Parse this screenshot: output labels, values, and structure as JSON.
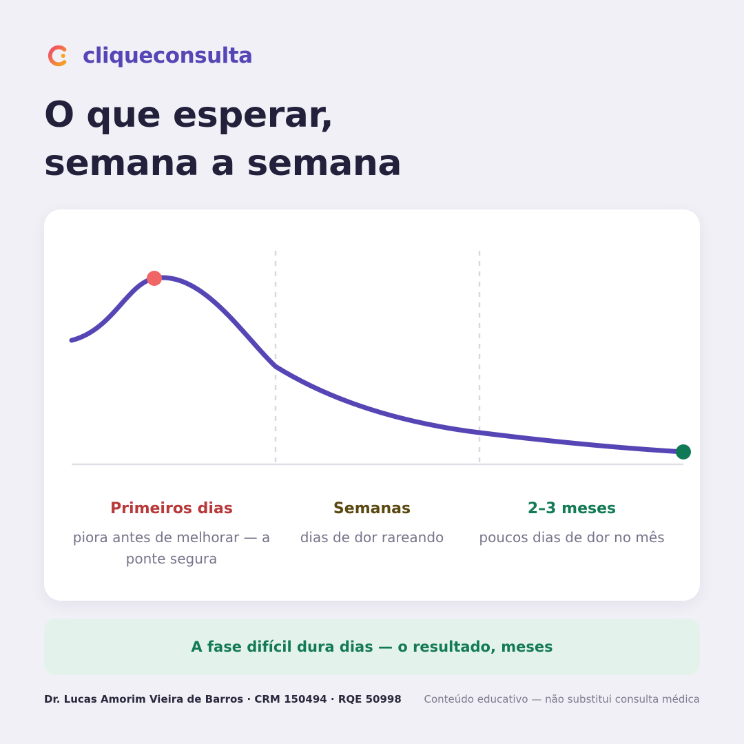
{
  "brand": {
    "name": "cliqueconsulta",
    "logo_icon": "clique-c-logo-icon",
    "colors": {
      "gradient_start": "#f0486c",
      "gradient_end": "#f5a524",
      "text": "#5646b5"
    }
  },
  "headline": {
    "line1": "O que esperar,",
    "line2": "semana a semana"
  },
  "chart_data": {
    "type": "line",
    "series_color": "#5646b5",
    "peak_marker_color": "#f06565",
    "end_marker_color": "#0f7a55",
    "phases": [
      {
        "title": "Primeiros dias",
        "description": "piora antes de melhorar — a ponte segura",
        "color": "#b8393a"
      },
      {
        "title": "Semanas",
        "description": "dias de dor rareando",
        "color": "#5a4810"
      },
      {
        "title": "2–3 meses",
        "description": "poucos dias de dor no mês",
        "color": "#127a55"
      }
    ]
  },
  "banner": {
    "text": "A fase difícil dura dias — o resultado, meses"
  },
  "footer": {
    "author": "Dr. Lucas Amorim Vieira de Barros · CRM 150494 · RQE 50998",
    "disclaimer": "Conteúdo educativo — não substitui consulta médica"
  }
}
